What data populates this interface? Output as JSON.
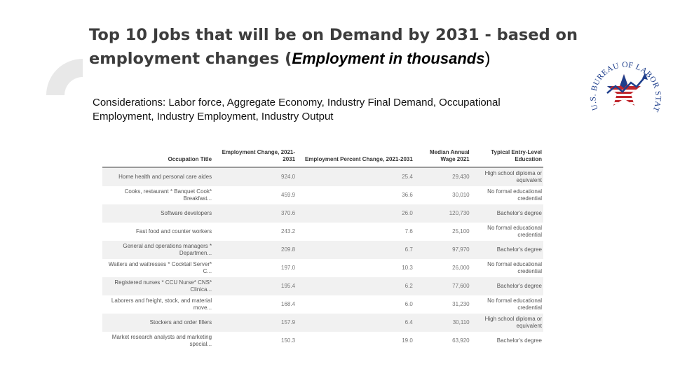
{
  "title": {
    "main": "Top 10 Jobs that will be on Demand by 2031 - based on employment changes (",
    "italic": "Employment in thousands",
    "close": ")"
  },
  "considerations": "Considerations: Labor force, Aggregate Economy, Industry Final Demand, Occupational Employment, Industry Employment, Industry Output",
  "logo": {
    "text": "U.S. BUREAU OF LABOR STATISTICS",
    "colors": {
      "red": "#c0272d",
      "blue": "#1f3f8c"
    }
  },
  "table": {
    "headers": [
      "Occupation Title",
      "Employment Change, 2021-2031",
      "Employment Percent Change, 2021-2031",
      "Median Annual Wage 2021",
      "Typical Entry-Level Education"
    ],
    "rows": [
      [
        "Home health and personal care aides",
        "924.0",
        "25.4",
        "29,430",
        "High school diploma or equivalent"
      ],
      [
        "Cooks, restaurant * Banquet Cook* Breakfast...",
        "459.9",
        "36.6",
        "30,010",
        "No formal educational credential"
      ],
      [
        "Software developers",
        "370.6",
        "26.0",
        "120,730",
        "Bachelor's degree"
      ],
      [
        "Fast food and counter workers",
        "243.2",
        "7.6",
        "25,100",
        "No formal educational credential"
      ],
      [
        "General and operations managers * Departmen...",
        "209.8",
        "6.7",
        "97,970",
        "Bachelor's degree"
      ],
      [
        "Waiters and waitresses * Cocktail Server* C...",
        "197.0",
        "10.3",
        "26,000",
        "No formal educational credential"
      ],
      [
        "Registered nurses * CCU Nurse* CNS* Clinica...",
        "195.4",
        "6.2",
        "77,600",
        "Bachelor's degree"
      ],
      [
        "Laborers and freight, stock, and material move...",
        "168.4",
        "6.0",
        "31,230",
        "No formal educational credential"
      ],
      [
        "Stockers and order fillers",
        "157.9",
        "6.4",
        "30,110",
        "High school diploma or equivalent"
      ],
      [
        "Market research analysts and marketing special...",
        "150.3",
        "19.0",
        "63,920",
        "Bachelor's degree"
      ]
    ]
  }
}
